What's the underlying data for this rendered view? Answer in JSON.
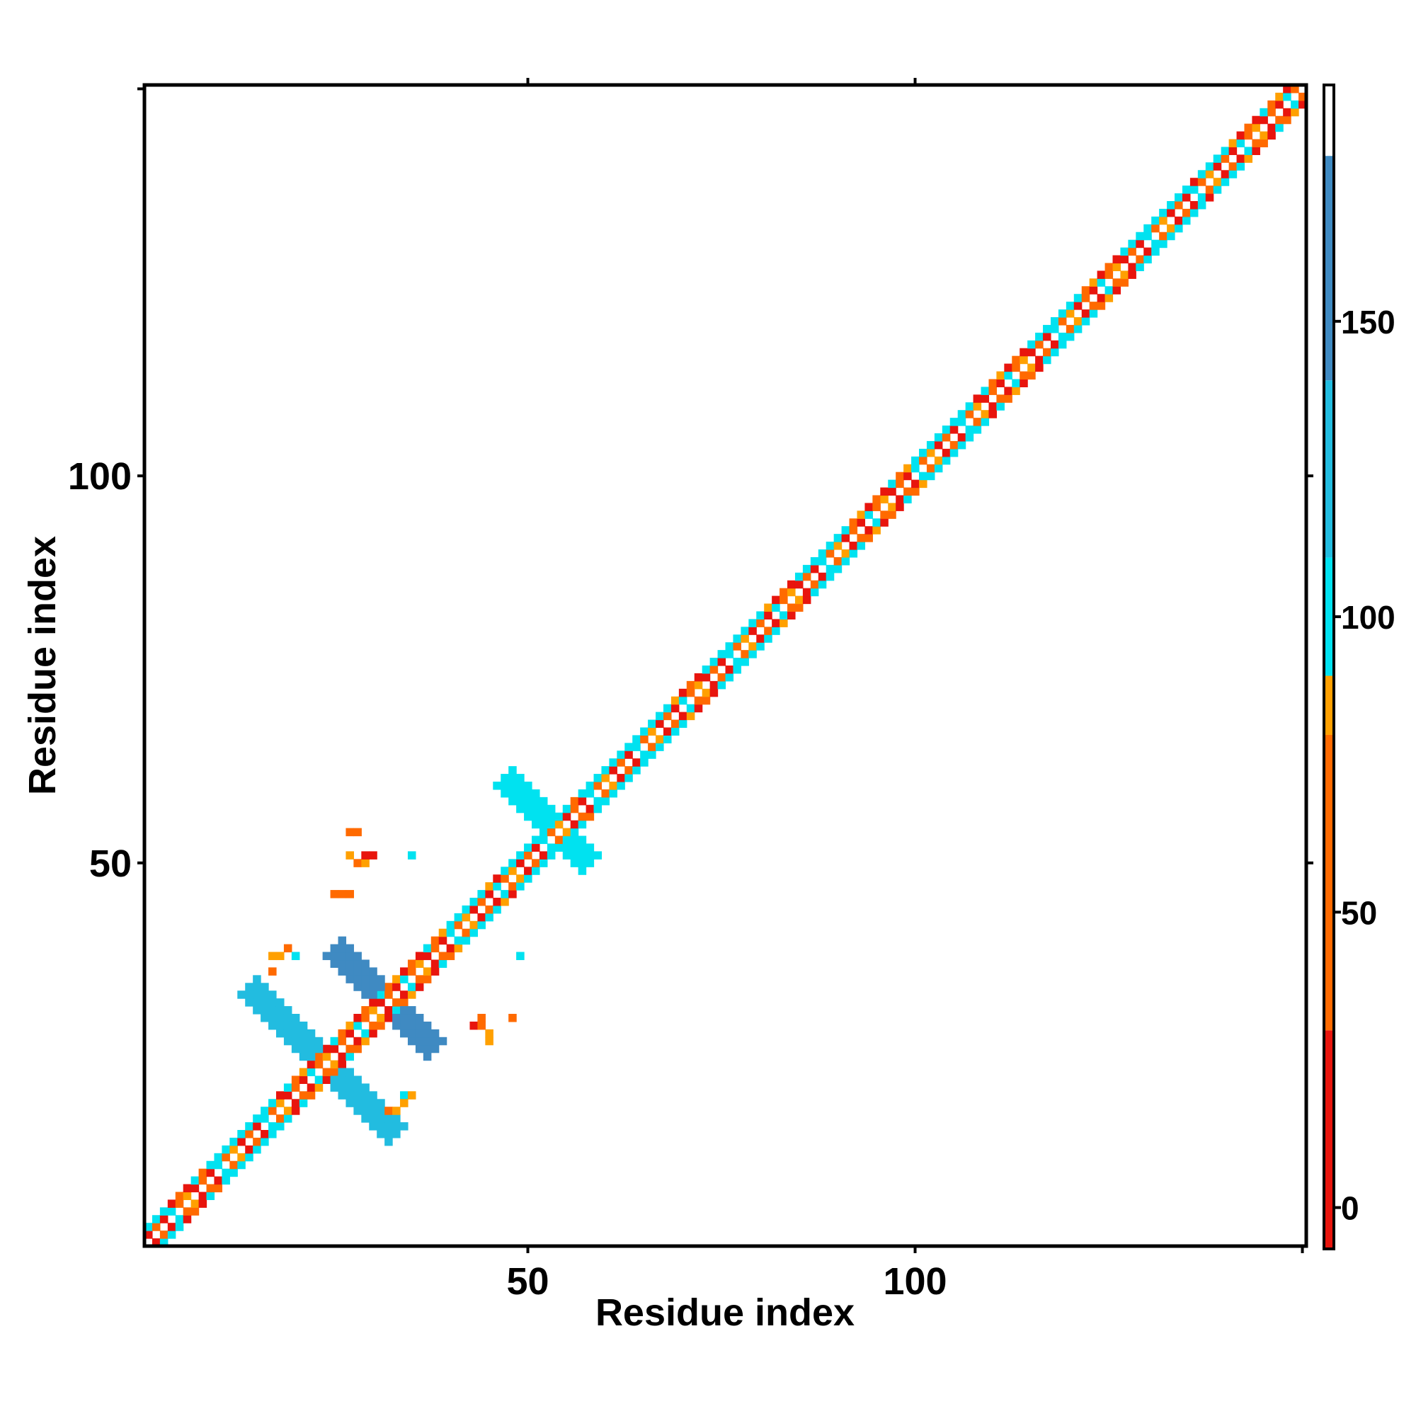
{
  "chart_data": {
    "type": "heatmap",
    "xlabel": "Residue index",
    "ylabel": "Residue index",
    "x_ticks": [
      50,
      100
    ],
    "y_ticks": [
      50,
      100
    ],
    "xlim": [
      0.5,
      150.5
    ],
    "ylim": [
      0.5,
      150.5
    ],
    "colorbar": {
      "ticks": [
        0,
        50,
        100,
        150
      ],
      "range": [
        -7,
        190
      ],
      "bands": [
        {
          "from": -7,
          "to": 30,
          "color": "#e8150d"
        },
        {
          "from": 30,
          "to": 80,
          "color": "#ff6a00"
        },
        {
          "from": 80,
          "to": 90,
          "color": "#ffa000"
        },
        {
          "from": 90,
          "to": 110,
          "color": "#00e2f0"
        },
        {
          "from": 110,
          "to": 140,
          "color": "#22bce0"
        },
        {
          "from": 140,
          "to": 178,
          "color": "#3f8ac2"
        },
        {
          "from": 178,
          "to": 190,
          "color": "#ffffff"
        }
      ]
    },
    "diagonal": {
      "start": 1,
      "end": 150,
      "band_width": 5
    },
    "diagonal_cycle_values": [
      5,
      60,
      5,
      85,
      60,
      100
    ],
    "helix_segments": [
      [
        1,
        3
      ],
      [
        9,
        17
      ],
      [
        40,
        44
      ],
      [
        47,
        54
      ],
      [
        57,
        68
      ],
      [
        73,
        80
      ],
      [
        85,
        90
      ],
      [
        100,
        107
      ],
      [
        115,
        120
      ],
      [
        128,
        135
      ],
      [
        137,
        140
      ]
    ],
    "helix_value": 100,
    "sheet_regions": [
      {
        "center_x": 24,
        "center_y": 24,
        "value": 120,
        "arm_lengths": [
          9,
          10,
          9,
          10
        ],
        "arm_width": 2.6
      },
      {
        "center_x": 32,
        "center_y": 32,
        "value": 150,
        "arm_lengths": [
          6,
          7,
          6,
          7
        ],
        "arm_width": 2.4
      },
      {
        "center_x": 53,
        "center_y": 55,
        "value": 100,
        "arm_lengths": [
          5,
          6,
          5,
          6
        ],
        "arm_width": 2.2
      }
    ],
    "offdiag_points": [
      {
        "x": 27,
        "y": 54,
        "v": 60
      },
      {
        "x": 28,
        "y": 54,
        "v": 60
      },
      {
        "x": 28,
        "y": 50,
        "v": 60
      },
      {
        "x": 29,
        "y": 50,
        "v": 85
      },
      {
        "x": 29,
        "y": 51,
        "v": 5
      },
      {
        "x": 30,
        "y": 51,
        "v": 5
      },
      {
        "x": 27,
        "y": 51,
        "v": 85
      },
      {
        "x": 35,
        "y": 51,
        "v": 100
      },
      {
        "x": 25,
        "y": 46,
        "v": 60
      },
      {
        "x": 26,
        "y": 46,
        "v": 60
      },
      {
        "x": 27,
        "y": 46,
        "v": 60
      },
      {
        "x": 17,
        "y": 38,
        "v": 85
      },
      {
        "x": 18,
        "y": 38,
        "v": 85
      },
      {
        "x": 19,
        "y": 39,
        "v": 60
      },
      {
        "x": 20,
        "y": 38,
        "v": 100
      },
      {
        "x": 17,
        "y": 36,
        "v": 60
      },
      {
        "x": 49,
        "y": 38,
        "v": 100
      },
      {
        "x": 44,
        "y": 30,
        "v": 60
      },
      {
        "x": 43,
        "y": 29,
        "v": 5
      },
      {
        "x": 44,
        "y": 29,
        "v": 60
      },
      {
        "x": 48,
        "y": 30,
        "v": 60
      },
      {
        "x": 45,
        "y": 28,
        "v": 85
      },
      {
        "x": 45,
        "y": 27,
        "v": 85
      },
      {
        "x": 34,
        "y": 20,
        "v": 100
      },
      {
        "x": 35,
        "y": 20,
        "v": 85
      },
      {
        "x": 34,
        "y": 19,
        "v": 85
      },
      {
        "x": 33,
        "y": 18,
        "v": 85
      },
      {
        "x": 32,
        "y": 18,
        "v": 60
      }
    ]
  }
}
